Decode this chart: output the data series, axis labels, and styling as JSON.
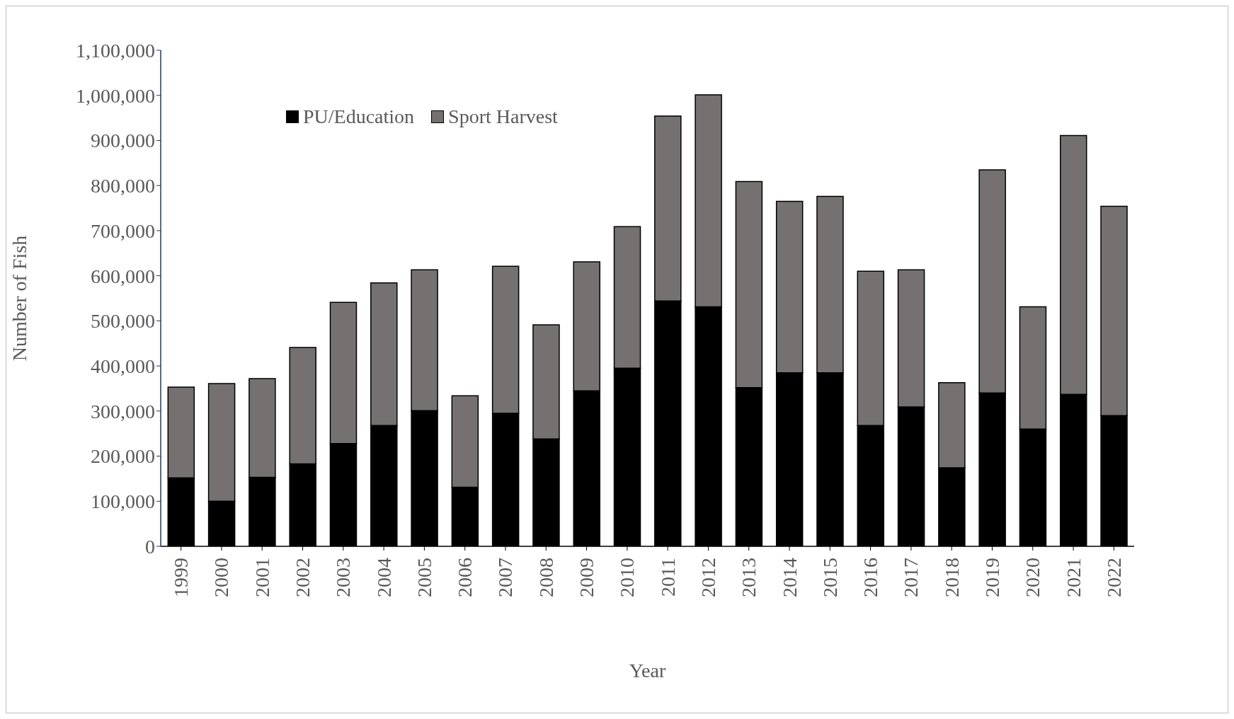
{
  "chart_data": {
    "type": "bar",
    "stacked": true,
    "xlabel": "Year",
    "ylabel": "Number of Fish",
    "categories": [
      "1999",
      "2000",
      "2001",
      "2002",
      "2003",
      "2004",
      "2005",
      "2006",
      "2007",
      "2008",
      "2009",
      "2010",
      "2011",
      "2012",
      "2013",
      "2014",
      "2015",
      "2016",
      "2017",
      "2018",
      "2019",
      "2020",
      "2021",
      "2022"
    ],
    "series": [
      {
        "name": "PU/Education",
        "color": "#000000",
        "values": [
          152000,
          100000,
          153000,
          183000,
          228000,
          268000,
          301000,
          131000,
          295000,
          238000,
          345000,
          395000,
          544000,
          531000,
          352000,
          385000,
          385000,
          268000,
          309000,
          174000,
          340000,
          260000,
          337000,
          290000
        ]
      },
      {
        "name": "Sport Harvest",
        "color": "#767171",
        "values": [
          201000,
          261000,
          219000,
          258000,
          313000,
          316000,
          312000,
          203000,
          326000,
          253000,
          286000,
          314000,
          410000,
          470000,
          457000,
          380000,
          391000,
          342000,
          304000,
          189000,
          495000,
          271000,
          574000,
          464000
        ]
      }
    ],
    "ylim": [
      0,
      1100000
    ],
    "yticks": [
      0,
      {
        "value": 100000,
        "label": "100,000"
      },
      {
        "value": 200000,
        "label": "200,000"
      },
      {
        "value": 300000,
        "label": "300,000"
      },
      {
        "value": 400000,
        "label": "400,000"
      },
      {
        "value": 500000,
        "label": "500,000"
      },
      {
        "value": 600000,
        "label": "600,000"
      },
      {
        "value": 700000,
        "label": "700,000"
      },
      {
        "value": 800000,
        "label": "800,000"
      },
      {
        "value": 900000,
        "label": "900,000"
      },
      {
        "value": 1000000,
        "label": "1,000,000"
      },
      {
        "value": 1100000,
        "label": "1,100,000"
      }
    ],
    "grid": false,
    "legend": "top left"
  }
}
